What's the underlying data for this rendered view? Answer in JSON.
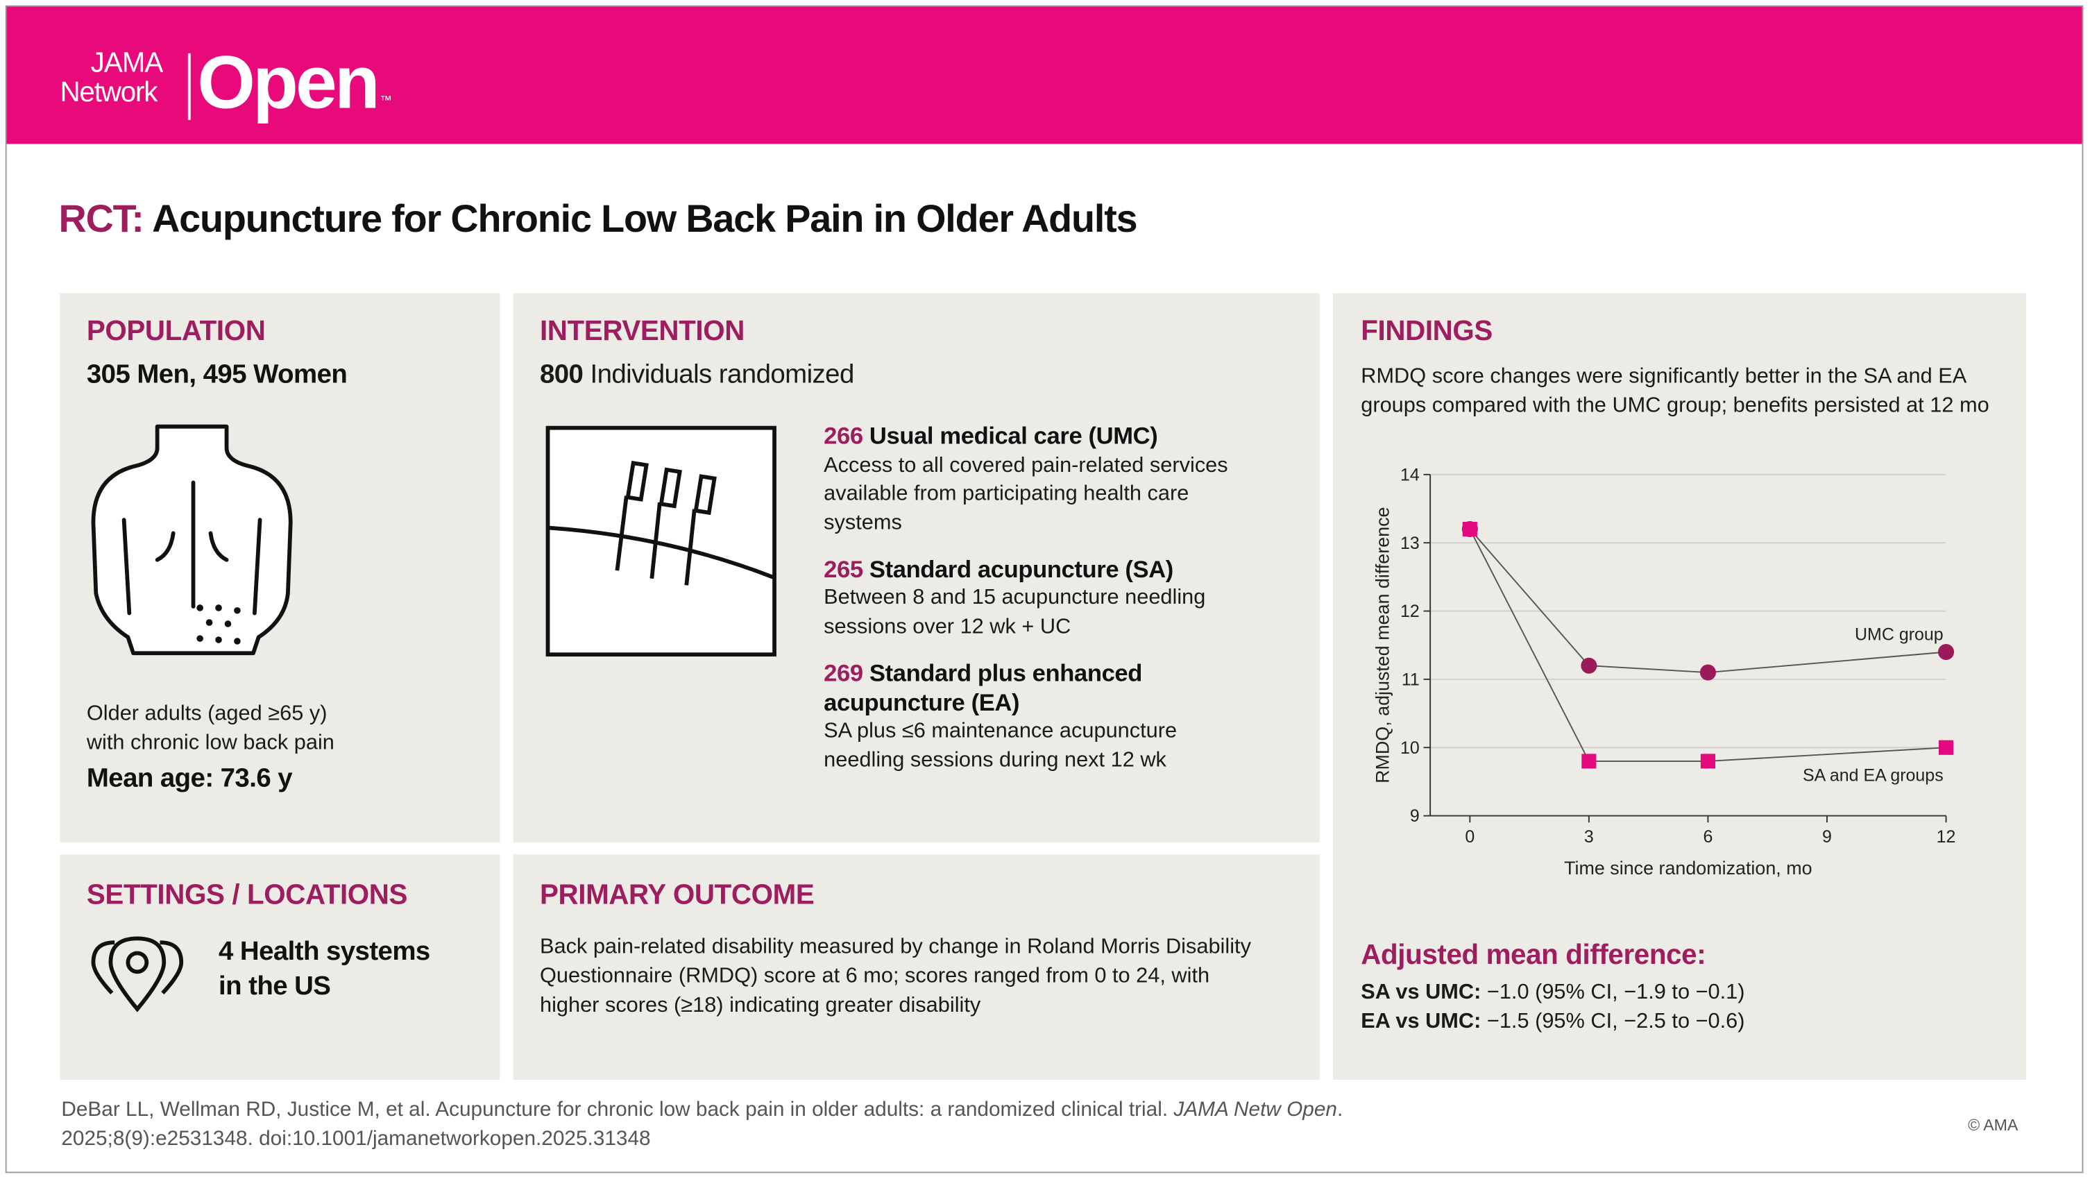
{
  "header": {
    "brand_top": "JAMA",
    "brand_bottom": "Network",
    "brand_main": "Open",
    "trademark": "™"
  },
  "title": {
    "prefix": "RCT:",
    "text": "Acupuncture for Chronic Low Back Pain in Older Adults"
  },
  "population": {
    "heading": "POPULATION",
    "summary": "305 Men, 495 Women",
    "description": [
      "Older adults (aged ≥65 y)",
      "with chronic low back pain"
    ],
    "mean_age": "Mean age: 73.6 y"
  },
  "intervention": {
    "heading": "INTERVENTION",
    "total_number": "800",
    "total_text": "Individuals randomized",
    "arms": [
      {
        "number": "266",
        "name": [
          "Usual medical care (UMC)"
        ],
        "description": [
          "Access to all covered pain-related services",
          "available from participating health care",
          "systems"
        ]
      },
      {
        "number": "265",
        "name": [
          "Standard acupuncture (SA)"
        ],
        "description": [
          "Between 8 and 15 acupuncture needling",
          "sessions over 12 wk + UC"
        ]
      },
      {
        "number": "269",
        "name": [
          "Standard plus enhanced",
          "acupuncture (EA)"
        ],
        "description": [
          "SA plus ≤6 maintenance acupuncture",
          "needling sessions during next 12 wk"
        ]
      }
    ]
  },
  "settings": {
    "heading": "SETTINGS / LOCATIONS",
    "text": [
      "4 Health systems",
      "in the US"
    ]
  },
  "primary_outcome": {
    "heading": "PRIMARY OUTCOME",
    "text": [
      "Back pain-related disability measured by change in Roland Morris Disability",
      "Questionnaire (RMDQ) score at 6 mo; scores ranged from 0 to 24, with",
      "higher scores (≥18) indicating greater disability"
    ]
  },
  "findings": {
    "heading": "FINDINGS",
    "summary": [
      "RMDQ score changes were significantly better in the SA and EA",
      "groups compared with the UMC group; benefits persisted at 12 mo"
    ],
    "chart": {
      "type": "line",
      "x_label": "Time since randomization, mo",
      "y_label": "RMDQ, adjusted mean difference",
      "x": [
        0,
        3,
        6,
        12
      ],
      "xlim": [
        -1,
        12
      ],
      "xticks": [
        0,
        3,
        6,
        9,
        12
      ],
      "ylim": [
        9,
        14
      ],
      "yticks": [
        9,
        10,
        11,
        12,
        13,
        14
      ],
      "grid": true,
      "series": [
        {
          "name": "UMC group",
          "color": "#9b1b5a",
          "marker": "circle",
          "values": [
            13.2,
            11.2,
            11.1,
            11.4
          ]
        },
        {
          "name": "SA and EA groups",
          "color": "#e5097f",
          "marker": "square",
          "values": [
            13.2,
            9.8,
            9.8,
            10.0
          ]
        }
      ]
    },
    "adjusted_heading": "Adjusted mean difference:",
    "results": [
      {
        "label": "SA vs UMC:",
        "text": "−1.0 (95% CI, −1.9 to −0.1)"
      },
      {
        "label": "EA vs UMC:",
        "text": "−1.5 (95% CI, −2.5 to −0.6)"
      }
    ]
  },
  "citation": {
    "authors": "DeBar LL, Wellman RD, Justice M, et al. Acupuncture for chronic low back pain in older adults: a randomized clinical trial.",
    "journal": "JAMA Netw Open",
    "end": ".",
    "line2": "2025;8(9):e2531348. doi:10.1001/jamanetworkopen.2025.31348"
  },
  "copyright": "© AMA"
}
